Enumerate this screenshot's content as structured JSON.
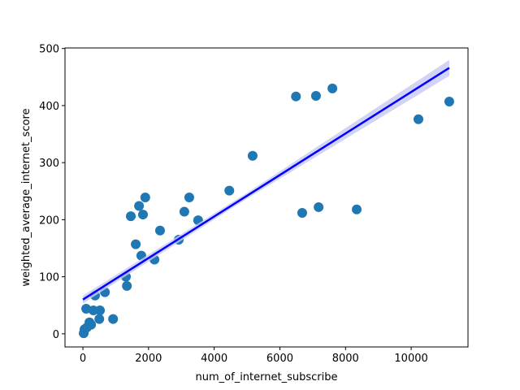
{
  "chart_data": {
    "type": "scatter",
    "xlabel": "num_of_internet_subscribe",
    "ylabel": "weighted_average_internet_score",
    "x": [
      25,
      50,
      120,
      100,
      200,
      250,
      320,
      520,
      370,
      500,
      670,
      920,
      1310,
      1340,
      1460,
      1610,
      1710,
      1780,
      1830,
      1900,
      2180,
      2350,
      2920,
      3090,
      3240,
      3510,
      4460,
      5170,
      6490,
      6680,
      7100,
      7180,
      7600,
      8340,
      10220,
      11160
    ],
    "values": [
      1,
      8,
      11,
      44,
      20,
      16,
      41,
      41,
      67,
      26,
      73,
      26,
      100,
      84,
      206,
      157,
      224,
      137,
      209,
      239,
      130,
      181,
      165,
      214,
      239,
      199,
      251,
      312,
      416,
      212,
      417,
      222,
      430,
      218,
      376,
      407
    ],
    "color": "#1f77b4",
    "regression": {
      "x": [
        0,
        5000,
        11160
      ],
      "values": [
        60,
        242,
        466
      ],
      "lower": [
        53,
        237,
        452
      ],
      "upper": [
        67,
        247,
        480
      ],
      "color": "#0000ff",
      "band_color": "#c8c8f4"
    },
    "xlim": [
      -545,
      11730
    ],
    "ylim": [
      -23,
      501
    ],
    "xticks": [
      0,
      2000,
      4000,
      6000,
      8000,
      10000
    ],
    "yticks": [
      0,
      100,
      200,
      300,
      400,
      500
    ]
  }
}
